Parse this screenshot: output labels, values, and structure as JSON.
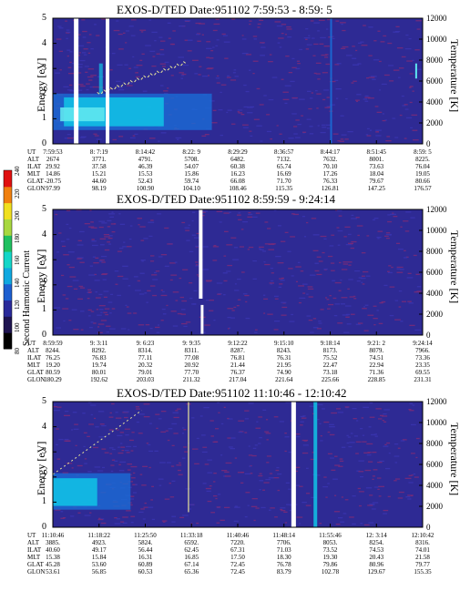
{
  "colors": {
    "background": "#2e2a94",
    "speckle_red": "#7a2a78",
    "speckle_blue": "#3a35b0",
    "gap_white": "#ffffff",
    "cyan": "#11c4e6",
    "light_cyan": "#5fe7f0",
    "blue": "#1a6cd6",
    "pale_yellow": "#e8e49a"
  },
  "colorbar": {
    "title": "Second Harmonic Current",
    "ticks": [
      "80",
      "100",
      "120",
      "140",
      "160",
      "180",
      "200",
      "220",
      "240"
    ],
    "colors": [
      "#000000",
      "#1e1450",
      "#2a2a9a",
      "#1d5fd0",
      "#10a8e0",
      "#14d6c8",
      "#20c060",
      "#a8d840",
      "#f0e020",
      "#f08010",
      "#e01010"
    ]
  },
  "chart_data": [
    {
      "type": "heatmap",
      "title": "EXOS-D/TED   Date:951102   7:59:53 - 8:59: 5",
      "ylabel": "Energy [eV]",
      "y2label": "Temperature [K]",
      "ylim": [
        0,
        5
      ],
      "y2lim": [
        0,
        12000
      ],
      "yticks": [
        "0",
        "1",
        "2",
        "3",
        "4",
        "5"
      ],
      "y2ticks": [
        "0",
        "2000",
        "4000",
        "6000",
        "8000",
        "10000",
        "12000"
      ],
      "row_labels": [
        "UT",
        "ALT",
        "ILAT",
        "MLT",
        "GLAT",
        "GLON"
      ],
      "columns": [
        [
          "7:59:53",
          "2674",
          "29.92",
          "14.86",
          "-20.75",
          "97.99"
        ],
        [
          "8: 7:19",
          "3771.",
          "37.58",
          "15.21",
          "44.60",
          "98.19"
        ],
        [
          "8:14:42",
          "4791.",
          "46.39",
          "15.53",
          "52.43",
          "100.90"
        ],
        [
          "8:22: 9",
          "5708.",
          "54.07",
          "15.86",
          "59.74",
          "104.10"
        ],
        [
          "8:29:29",
          "6482.",
          "60.38",
          "16.23",
          "66.08",
          "108.46"
        ],
        [
          "8:36:57",
          "7132.",
          "65.74",
          "16.69",
          "71.70",
          "115.35"
        ],
        [
          "8:44:17",
          "7632.",
          "70.10",
          "17.26",
          "76.33",
          "126.81"
        ],
        [
          "8:51:45",
          "8001.",
          "73.63",
          "18.04",
          "79.67",
          "147.25"
        ],
        [
          "8:59: 5",
          "8225.",
          "76.04",
          "19.05",
          "80.66",
          "176.57"
        ]
      ]
    },
    {
      "type": "heatmap",
      "title": "EXOS-D/TED   Date:951102   8:59:59 - 9:24:14",
      "ylabel": "Energy [eV]",
      "y2label": "Temperature [K]",
      "ylim": [
        0,
        5
      ],
      "y2lim": [
        0,
        12000
      ],
      "yticks": [
        "0",
        "1",
        "2",
        "3",
        "4",
        "5"
      ],
      "y2ticks": [
        "0",
        "2000",
        "4000",
        "6000",
        "8000",
        "10000",
        "12000"
      ],
      "row_labels": [
        "UT",
        "ALT",
        "ILAT",
        "MLT",
        "GLAT",
        "GLON"
      ],
      "columns": [
        [
          "8:59:59",
          "8244.",
          "76.25",
          "19.20",
          "80.59",
          "180.29"
        ],
        [
          "9: 3:11",
          "8292.",
          "76.83",
          "19.74",
          "80.01",
          "192.62"
        ],
        [
          "9: 6:23",
          "8314.",
          "77.11",
          "20.32",
          "79.01",
          "203.03"
        ],
        [
          "9: 9:35",
          "8311.",
          "77.08",
          "20.92",
          "77.70",
          "211.32"
        ],
        [
          "9:12:22",
          "8287.",
          "76.81",
          "21.44",
          "76.37",
          "217.04"
        ],
        [
          "9:15:10",
          "8243.",
          "76.31",
          "21.95",
          "74.90",
          "221.64"
        ],
        [
          "9:18:14",
          "8173.",
          "75.52",
          "22.47",
          "73.18",
          "225.66"
        ],
        [
          "9:21: 2",
          "8079.",
          "74.51",
          "22.94",
          "71.36",
          "228.85"
        ],
        [
          "9:24:14",
          "7966.",
          "73.36",
          "23.35",
          "69.55",
          "231.31"
        ]
      ]
    },
    {
      "type": "heatmap",
      "title": "EXOS-D/TED   Date:951102   11:10:46 - 12:10:42",
      "ylabel": "Energy [eV]",
      "y2label": "Temperature [K]",
      "ylim": [
        0,
        5
      ],
      "y2lim": [
        0,
        12000
      ],
      "yticks": [
        "0",
        "1",
        "2",
        "3",
        "4",
        "5"
      ],
      "y2ticks": [
        "0",
        "2000",
        "4000",
        "6000",
        "8000",
        "10000",
        "12000"
      ],
      "row_labels": [
        "UT",
        "ALT",
        "ILAT",
        "MLT",
        "GLAT",
        "GLON"
      ],
      "columns": [
        [
          "11:10:46",
          "3885.",
          "40.60",
          "15.38",
          "45.28",
          "53.61"
        ],
        [
          "11:18:22",
          "4923.",
          "49.17",
          "15.84",
          "53.60",
          "56.85"
        ],
        [
          "11:25:50",
          "5824.",
          "56.44",
          "16.31",
          "60.89",
          "60.53"
        ],
        [
          "11:33:18",
          "6592.",
          "62.45",
          "16.85",
          "67.14",
          "65.36"
        ],
        [
          "11:40:46",
          "7220.",
          "67.31",
          "17.50",
          "72.45",
          "72.45"
        ],
        [
          "11:48:14",
          "7706.",
          "71.03",
          "18.30",
          "76.78",
          "83.79"
        ],
        [
          "11:55:46",
          "8053.",
          "73.52",
          "19.30",
          "79.86",
          "102.78"
        ],
        [
          "12: 3:14",
          "8254.",
          "74.53",
          "20.43",
          "80.96",
          "129.67"
        ],
        [
          "12:10:42",
          "8316.",
          "74.01",
          "21.58",
          "79.77",
          "155.35"
        ]
      ]
    }
  ]
}
